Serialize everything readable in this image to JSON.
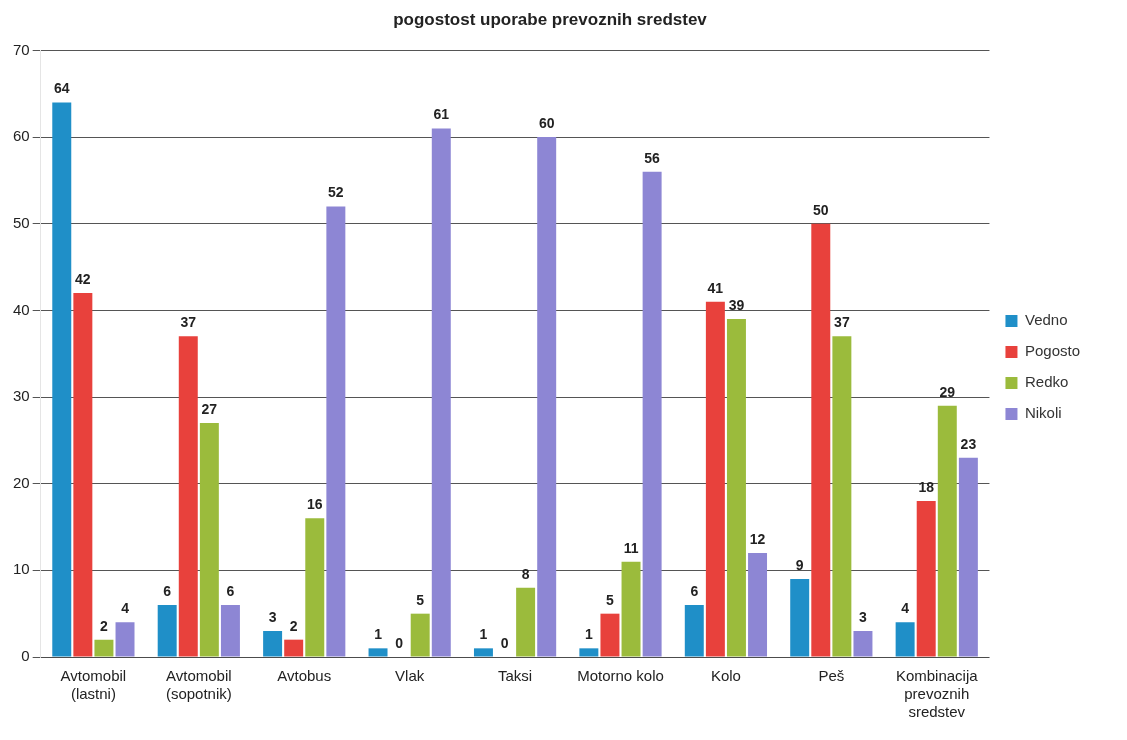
{
  "chart_data": {
    "type": "bar",
    "title": "pogostost uporabe prevoznih sredstev",
    "categories": [
      "Avtomobil (lastni)",
      "Avtomobil (sopotnik)",
      "Avtobus",
      "Vlak",
      "Taksi",
      "Motorno kolo",
      "Kolo",
      "Peš",
      "Kombinacija prevoznih sredstev"
    ],
    "series": [
      {
        "name": "Vedno",
        "color": "#1f8fc8",
        "values": [
          64,
          6,
          3,
          1,
          1,
          1,
          6,
          9,
          4
        ]
      },
      {
        "name": "Pogosto",
        "color": "#e8413c",
        "values": [
          42,
          37,
          2,
          0,
          0,
          5,
          41,
          50,
          18
        ]
      },
      {
        "name": "Redko",
        "color": "#9bbb3c",
        "values": [
          2,
          27,
          16,
          5,
          8,
          11,
          39,
          37,
          29
        ]
      },
      {
        "name": "Nikoli",
        "color": "#8d86d4",
        "values": [
          4,
          6,
          52,
          61,
          60,
          56,
          12,
          3,
          23
        ]
      }
    ],
    "ylim": [
      0,
      70
    ],
    "yticks": [
      0,
      10,
      20,
      30,
      40,
      50,
      60,
      70
    ],
    "grid": "y",
    "legend": "right",
    "data_labels": true
  }
}
